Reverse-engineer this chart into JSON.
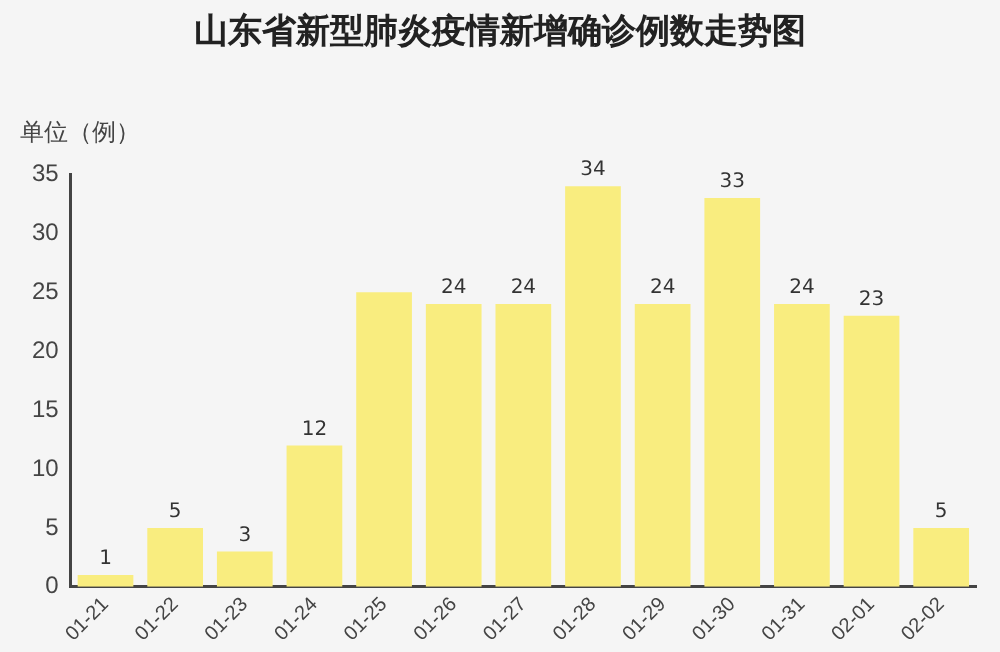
{
  "chart_data": {
    "type": "bar",
    "title": "山东省新型肺炎疫情新增确诊例数走势图",
    "ylabel": "单位（例）",
    "categories": [
      "01-21",
      "01-22",
      "01-23",
      "01-24",
      "01-25",
      "01-26",
      "01-27",
      "01-28",
      "01-29",
      "01-30",
      "01-31",
      "02-01",
      "02-02"
    ],
    "values": [
      1,
      5,
      3,
      12,
      25,
      24,
      24,
      34,
      24,
      33,
      24,
      23,
      5
    ],
    "value_labels": [
      "1",
      "5",
      "3",
      "12",
      null,
      "24",
      "24",
      "34",
      "24",
      "33",
      "24",
      "23",
      "5"
    ],
    "color": "#f9ed7f",
    "ylim": [
      0,
      35
    ],
    "yticks": [
      0,
      5,
      10,
      15,
      20,
      25,
      30,
      35
    ],
    "grid": false,
    "legend": false
  }
}
